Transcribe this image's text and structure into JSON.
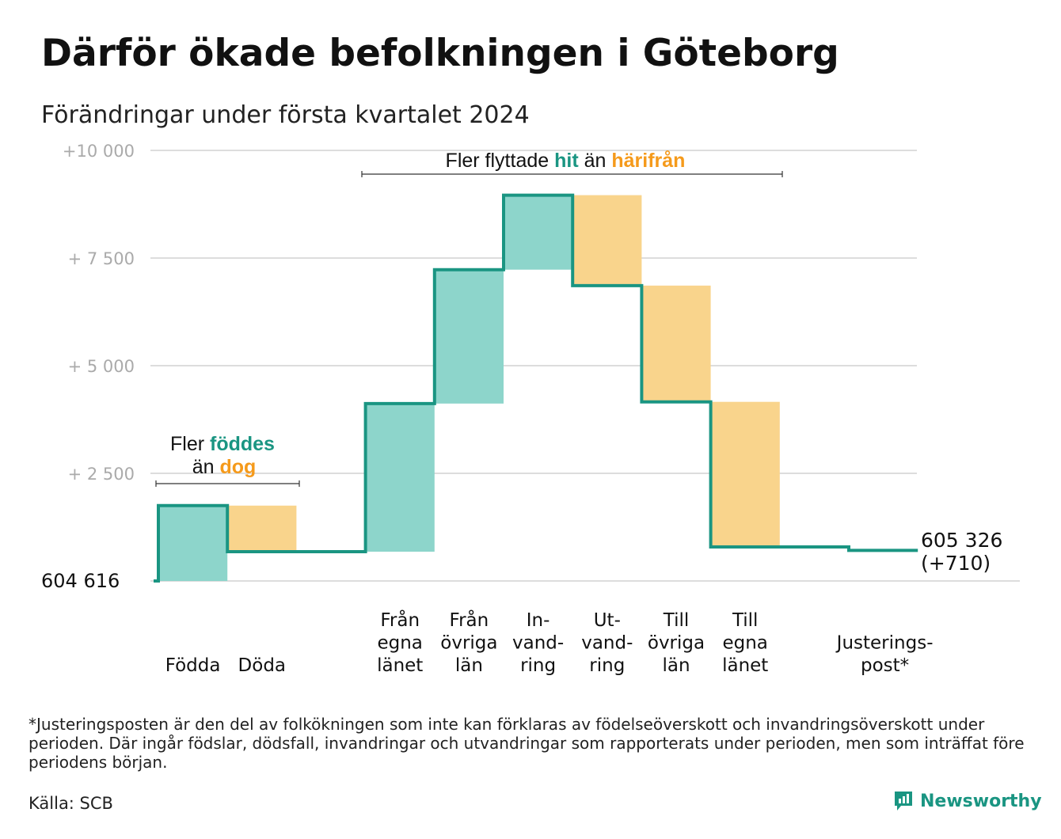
{
  "title": "Därför ökade befolkningen i Göteborg",
  "subtitle": "Förändringar under första kvartalet 2024",
  "footnote": "*Justeringsposten är den del av folkökningen som inte kan förklaras av födelseöverskott och invandringsöverskott under perioden. Där ingår födslar, dödsfall, invandringar och utvandringar som rapporterats under perioden, men som inträffat före periodens början.",
  "source": "Källa: SCB",
  "brand": "Newsworthy",
  "colors": {
    "increase_fill": "#8dd5cb",
    "decrease_fill": "#f9d48c",
    "step_line": "#1a9582",
    "hit_text": "#1a9582",
    "harifran_text": "#f59a1b",
    "grid": "#dddddd",
    "tick_text": "#aaaaaa"
  },
  "annotations": {
    "births": {
      "line1_prefix": "Fler ",
      "line1_highlight": "föddes",
      "line2_prefix": "än ",
      "line2_highlight": "dog"
    },
    "migration": {
      "prefix": "Fler flyttade ",
      "highlight1": "hit",
      "middle": " än ",
      "highlight2": "härifrån"
    }
  },
  "chart_data": {
    "type": "waterfall",
    "title": "Därför ökade befolkningen i Göteborg",
    "subtitle": "Förändringar under första kvartalet 2024",
    "start_value": 604616,
    "start_label": "604  616",
    "end_label_line1": "605 326",
    "end_label_line2": "(+710)",
    "ylim": [
      0,
      10000
    ],
    "yticks": [
      {
        "value": 2500,
        "label": "+  2  500"
      },
      {
        "value": 5000,
        "label": "+  5  000"
      },
      {
        "value": 7500,
        "label": "+  7  500"
      },
      {
        "value": 10000,
        "label": "+10   000"
      }
    ],
    "grid": true,
    "categories": [
      {
        "label": [
          "Födda"
        ],
        "start": 0,
        "end": 1750,
        "kind": "increase"
      },
      {
        "label": [
          "Döda"
        ],
        "start": 1750,
        "end": 680,
        "kind": "decrease"
      },
      {
        "label": [],
        "start": 680,
        "end": 680,
        "kind": "gap"
      },
      {
        "label": [
          "Från",
          "egna",
          "länet"
        ],
        "start": 680,
        "end": 4120,
        "kind": "increase"
      },
      {
        "label": [
          "Från",
          "övriga",
          "län"
        ],
        "start": 4120,
        "end": 7230,
        "kind": "increase"
      },
      {
        "label": [
          "In-",
          "vand-",
          "ring"
        ],
        "start": 7230,
        "end": 8960,
        "kind": "increase"
      },
      {
        "label": [
          "Ut-",
          "vand-",
          "ring"
        ],
        "start": 8960,
        "end": 6860,
        "kind": "decrease"
      },
      {
        "label": [
          "Till",
          "övriga",
          "län"
        ],
        "start": 6860,
        "end": 4160,
        "kind": "decrease"
      },
      {
        "label": [
          "Till",
          "egna",
          "länet"
        ],
        "start": 4160,
        "end": 790,
        "kind": "decrease"
      },
      {
        "label": [],
        "start": 790,
        "end": 790,
        "kind": "gap"
      },
      {
        "label": [
          "Justerings-",
          "post*"
        ],
        "start": 790,
        "end": 710,
        "kind": "adjustment"
      }
    ],
    "final_change": 710
  }
}
